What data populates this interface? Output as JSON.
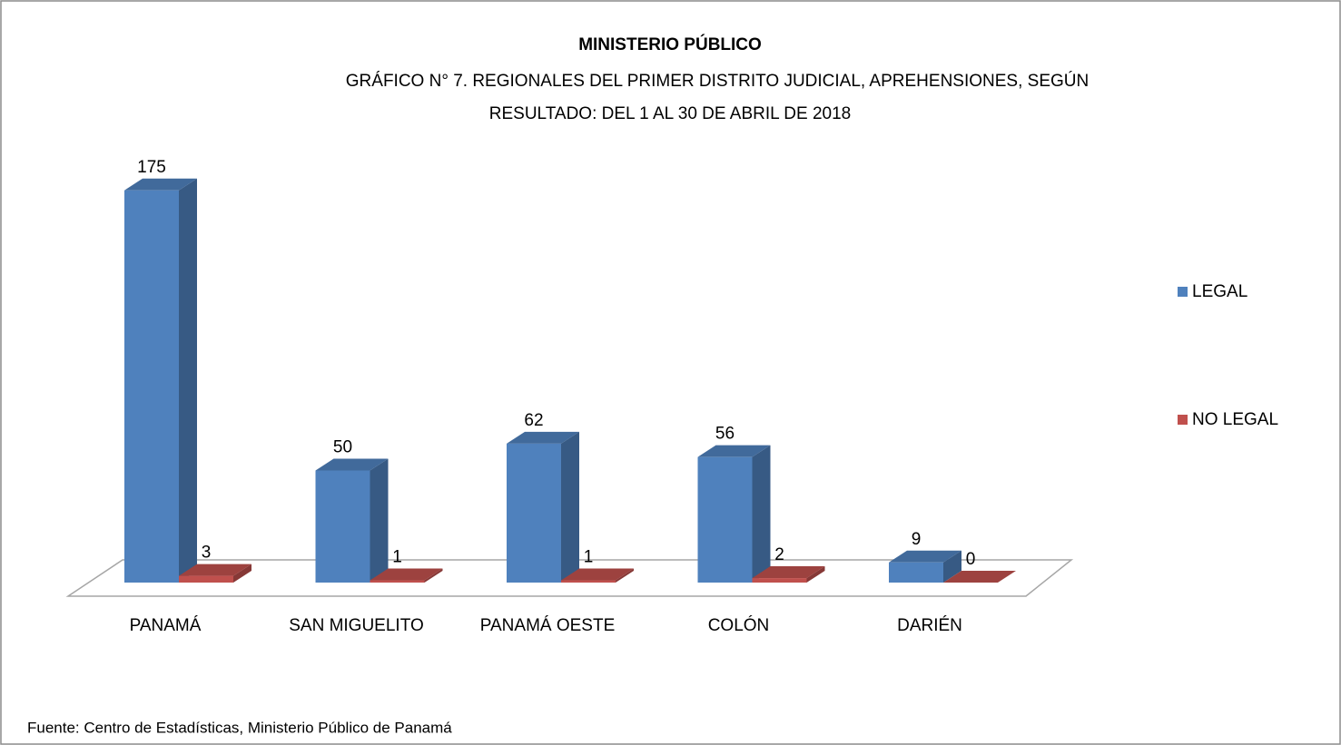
{
  "chart_data": {
    "type": "bar3d",
    "title": "MINISTERIO PÚBLICO",
    "subtitle": [
      "GRÁFICO N° 7.  REGIONALES DEL PRIMER DISTRITO JUDICIAL, APREHENSIONES, SEGÚN",
      "RESULTADO: DEL 1 AL 30 DE ABRIL DE 2018"
    ],
    "categories": [
      "PANAMÁ",
      "SAN MIGUELITO",
      "PANAMÁ OESTE",
      "COLÓN",
      "DARIÉN"
    ],
    "series": [
      {
        "name": "LEGAL",
        "color": "#4f81bd",
        "values": [
          175,
          50,
          62,
          56,
          9
        ]
      },
      {
        "name": "NO LEGAL",
        "color": "#c0504d",
        "values": [
          3,
          1,
          1,
          2,
          0
        ]
      }
    ],
    "legend": "right",
    "source": "Fuente: Centro de Estadísticas, Ministerio Público de Panamá"
  }
}
